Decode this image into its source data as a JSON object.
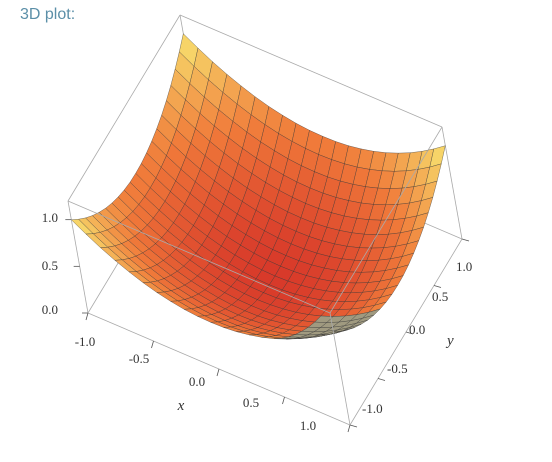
{
  "caption": "3D plot:",
  "chart_data": {
    "type": "surface",
    "function": "z = (x^2 + y^2) / 2",
    "xlabel": "x",
    "ylabel": "y",
    "zlabel": "",
    "xlim": [
      -1,
      1
    ],
    "ylim": [
      -1,
      1
    ],
    "zlim": [
      0,
      1.2
    ],
    "mesh_lines": 21,
    "x_ticks": [
      "-1.0",
      "-0.5",
      "0.0",
      "0.5",
      "1.0"
    ],
    "y_ticks": [
      "-1.0",
      "-0.5",
      "0.0",
      "0.5",
      "1.0"
    ],
    "z_ticks": [
      "0.0",
      "0.5",
      "1.0"
    ],
    "box": true,
    "colors": {
      "low": "#d83a2a",
      "mid": "#f07a3a",
      "high": "#f8e872",
      "mesh": "#333333",
      "box": "#aaaaaa"
    }
  }
}
